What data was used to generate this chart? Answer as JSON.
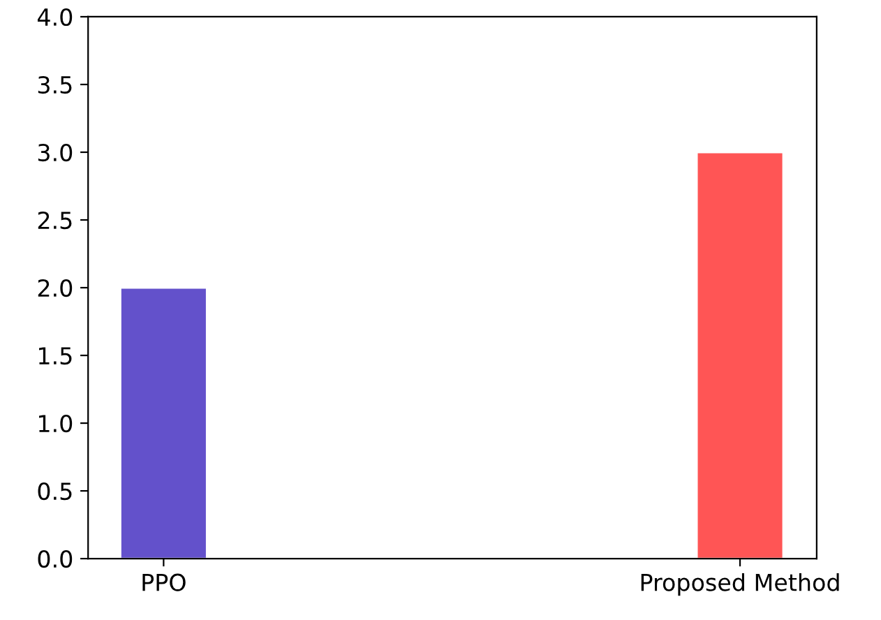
{
  "chart_data": {
    "type": "bar",
    "categories": [
      "PPO",
      "Proposed Method"
    ],
    "values": [
      2.0,
      3.0
    ],
    "colors": [
      "#6351cb",
      "#ff5555"
    ],
    "ylim": [
      0,
      4
    ],
    "yticks": [
      {
        "value": 0,
        "label": "0.0"
      },
      {
        "value": 0.5,
        "label": "0.5"
      },
      {
        "value": 1,
        "label": "1.0"
      },
      {
        "value": 1.5,
        "label": "1.5"
      },
      {
        "value": 2,
        "label": "2.0"
      },
      {
        "value": 2.5,
        "label": "2.5"
      },
      {
        "value": 3,
        "label": "3.0"
      },
      {
        "value": 3.5,
        "label": "3.5"
      },
      {
        "value": 4,
        "label": "4.0"
      }
    ],
    "grid": false
  }
}
